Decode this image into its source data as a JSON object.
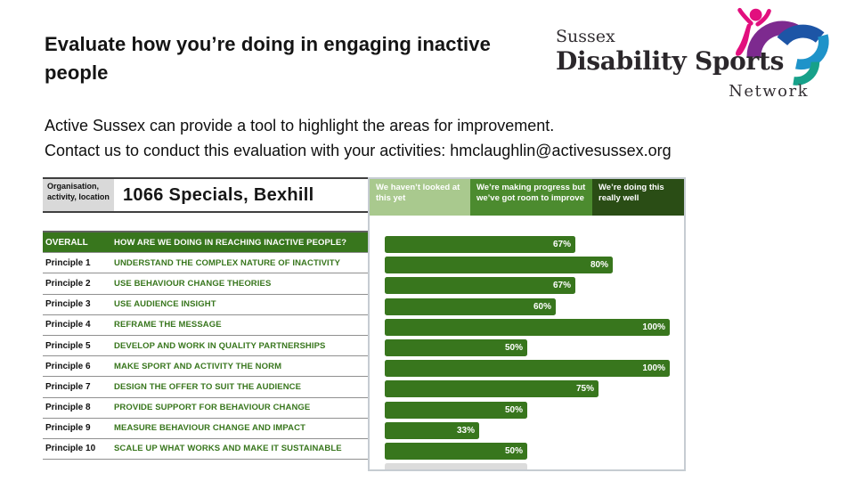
{
  "slide": {
    "title_line1": "Evaluate how you’re doing in engaging inactive",
    "title_line2": "people",
    "body_line1": "Active Sussex can provide a tool to highlight the areas for improvement.",
    "body_line2": "Contact us to conduct this evaluation with your activities: hmclaughlin@activesussex.org"
  },
  "logo": {
    "line1": "Sussex",
    "line2": "Disability Sports",
    "line3": "Network",
    "colors": {
      "pink": "#e20f7e",
      "purple": "#7d2a8f",
      "dark_blue": "#1d55a6",
      "light_blue": "#1e93c9",
      "teal": "#17a18a",
      "text": "#2b272b"
    }
  },
  "table": {
    "header_label": "Organisation, activity, location",
    "header_value": "1066 Specials, Bexhill",
    "header_bg": "#d9d9d9",
    "rows": [
      {
        "label": "OVERALL",
        "description": "HOW ARE WE DOING IN REACHING INACTIVE PEOPLE?",
        "value": 67,
        "highlight": true
      },
      {
        "label": "Principle 1",
        "description": "UNDERSTAND THE COMPLEX NATURE OF INACTIVITY",
        "value": 80
      },
      {
        "label": "Principle 2",
        "description": "USE BEHAVIOUR CHANGE THEORIES",
        "value": 67
      },
      {
        "label": "Principle 3",
        "description": "USE AUDIENCE INSIGHT",
        "value": 60
      },
      {
        "label": "Principle 4",
        "description": "REFRAME THE MESSAGE",
        "value": 100
      },
      {
        "label": "Principle 5",
        "description": "DEVELOP AND WORK IN QUALITY PARTNERSHIPS",
        "value": 50
      },
      {
        "label": "Principle 6",
        "description": "MAKE SPORT AND ACTIVITY THE NORM",
        "value": 100
      },
      {
        "label": "Principle 7",
        "description": "DESIGN THE OFFER TO SUIT THE AUDIENCE",
        "value": 75
      },
      {
        "label": "Principle 8",
        "description": "PROVIDE SUPPORT FOR BEHAVIOUR CHANGE",
        "value": 50
      },
      {
        "label": "Principle 9",
        "description": "MEASURE BEHAVIOUR CHANGE AND IMPACT",
        "value": 33
      },
      {
        "label": "Principle 10",
        "description": "SCALE UP WHAT WORKS AND MAKE IT SUSTAINABLE",
        "value": 50
      }
    ]
  },
  "legend": [
    {
      "label": "We haven’t looked at this yet",
      "color": "#a9c98e"
    },
    {
      "label": "We’re making progress but we’ve got room to improve",
      "color": "#4c8b2f"
    },
    {
      "label": "We’re doing this really well",
      "color": "#2a4d15"
    }
  ],
  "chart_data": {
    "type": "bar",
    "orientation": "horizontal",
    "title": "1066 Specials, Bexhill",
    "categories": [
      "OVERALL",
      "Principle 1",
      "Principle 2",
      "Principle 3",
      "Principle 4",
      "Principle 5",
      "Principle 6",
      "Principle 7",
      "Principle 8",
      "Principle 9",
      "Principle 10"
    ],
    "values": [
      67,
      80,
      67,
      60,
      100,
      50,
      100,
      75,
      50,
      33,
      50
    ],
    "value_labels": [
      "67%",
      "80%",
      "67%",
      "60%",
      "100%",
      "50%",
      "100%",
      "75%",
      "50%",
      "33%",
      "50%"
    ],
    "xlabel": "",
    "ylabel": "",
    "xlim": [
      0,
      100
    ],
    "grid": false,
    "bar_color": "#38761d",
    "legend_position": "top",
    "legend_entries": [
      "We haven’t looked at this yet",
      "We’re making progress but we’ve got room to improve",
      "We’re doing this really well"
    ],
    "ghost_bar_percent": 50
  }
}
